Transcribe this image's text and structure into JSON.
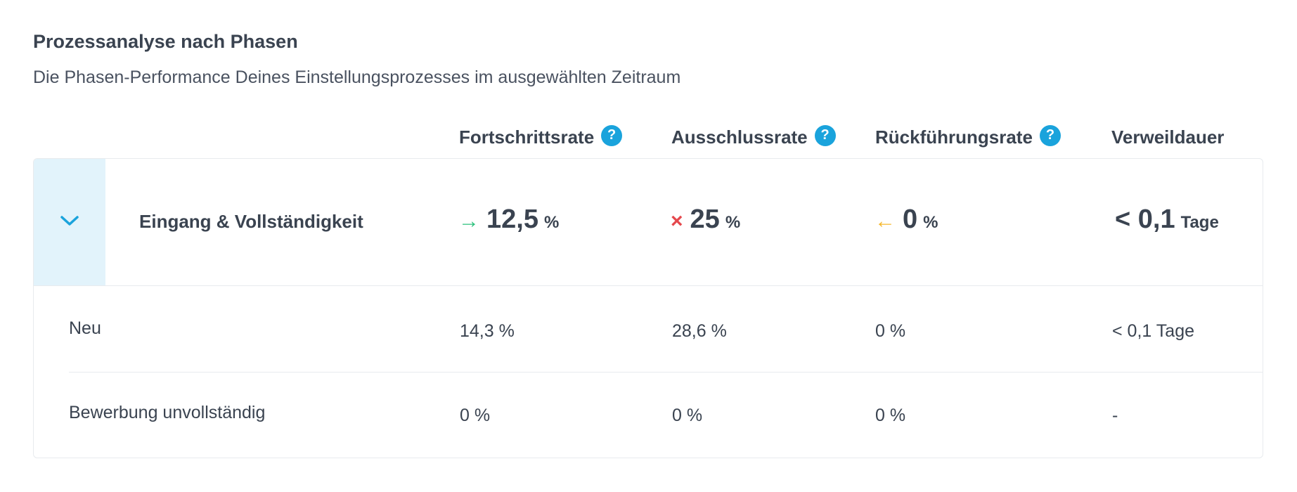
{
  "header": {
    "title": "Prozessanalyse nach Phasen",
    "subtitle": "Die Phasen-Performance Deines Einstellungsprozesses im ausgewählten Zeitraum"
  },
  "columns": {
    "progress": "Fortschrittsrate",
    "exclusion": "Ausschlussrate",
    "return": "Rückführungsrate",
    "duration": "Verweildauer",
    "help_glyph": "?"
  },
  "group": {
    "name": "Eingang & Vollständigkeit",
    "toggle_icon": "chevron-down-icon",
    "progress": {
      "symbol": "→",
      "value": "12,5",
      "unit": "%",
      "color": "#2ec27e"
    },
    "exclusion": {
      "symbol": "×",
      "value": "25",
      "unit": "%",
      "color": "#e5484d"
    },
    "return": {
      "symbol": "←",
      "value": "0",
      "unit": "%",
      "color": "#f5b82e"
    },
    "duration": {
      "value": "< 0,1",
      "unit": "Tage"
    }
  },
  "rows": [
    {
      "name": "Neu",
      "progress": "14,3 %",
      "exclusion": "28,6 %",
      "return": "0 %",
      "duration": "< 0,1 Tage"
    },
    {
      "name": "Bewerbung unvollständig",
      "progress": "0 %",
      "exclusion": "0 %",
      "return": "0 %",
      "duration": "-"
    }
  ],
  "colors": {
    "accent": "#1aa3dc",
    "toggle_bg": "#e2f3fb",
    "text": "#3a4350",
    "border": "#e8ebee"
  }
}
